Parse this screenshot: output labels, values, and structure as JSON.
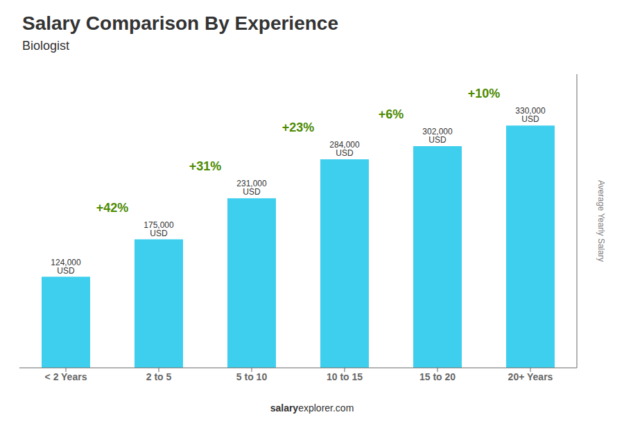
{
  "chart_data": {
    "type": "bar",
    "title": "Salary Comparison By Experience",
    "subtitle": "Biologist",
    "ylabel": "Average Yearly Salary",
    "footer": [
      "salary",
      "explorer.com"
    ],
    "categories": [
      "< 2 Years",
      "2 to 5",
      "5 to 10",
      "10 to 15",
      "15 to 20",
      "20+ Years"
    ],
    "values": [
      124000,
      175000,
      231000,
      284000,
      302000,
      330000
    ],
    "value_labels": [
      "124,000 USD",
      "175,000 USD",
      "231,000 USD",
      "284,000 USD",
      "302,000 USD",
      "330,000 USD"
    ],
    "data_labels": true,
    "annotations": [
      "+42%",
      "+31%",
      "+23%",
      "+6%",
      "+10%"
    ],
    "color": "#3ecfee",
    "ylim": [
      0,
      400000
    ],
    "tick_labels": "x",
    "grid": false
  }
}
